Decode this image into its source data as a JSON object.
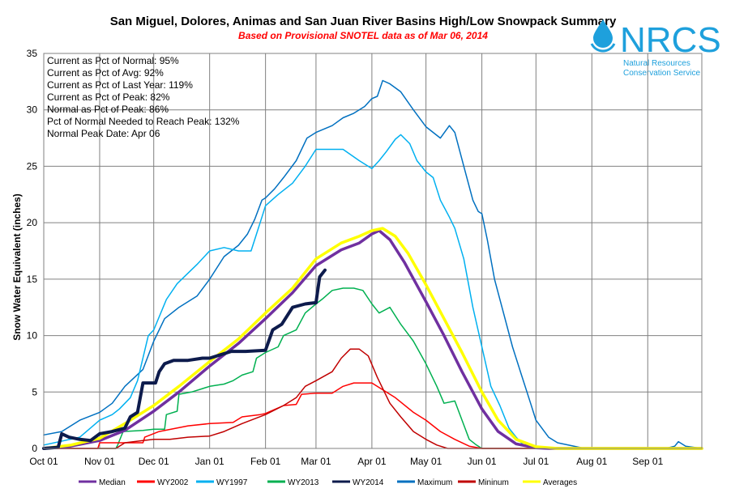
{
  "header": {
    "title": "San Miguel, Dolores, Animas and San Juan River Basins High/Low Snowpack Summary",
    "subtitle": "Based on Provisional SNOTEL data as of Mar 06, 2014"
  },
  "logo": {
    "name": "NRCS",
    "line1": "Natural Resources",
    "line2": "Conservation Service",
    "color": "#1ea0dc"
  },
  "stats": [
    "Current  as Pct of Normal: 95%",
    "Current  as Pct of Avg: 92%",
    "Current  as Pct of Last Year: 119%",
    "Current  as Pct of Peak: 82%",
    "Normal as Pct of Peak: 86%",
    "Pct of Normal Needed to Reach Peak: 132%",
    "Normal Peak Date: Apr 06"
  ],
  "chart_data": {
    "type": "line",
    "ylabel": "Snow Water Equivalent (inches)",
    "xlabel": "",
    "xlim": [
      0,
      365
    ],
    "ylim": [
      0,
      35
    ],
    "x_ticks": [
      {
        "label": "Oct 01",
        "day": 0
      },
      {
        "label": "Nov 01",
        "day": 31
      },
      {
        "label": "Dec 01",
        "day": 61
      },
      {
        "label": "Jan 01",
        "day": 92
      },
      {
        "label": "Feb 01",
        "day": 123
      },
      {
        "label": "Mar 01",
        "day": 151
      },
      {
        "label": "Apr 01",
        "day": 182
      },
      {
        "label": "May 01",
        "day": 212
      },
      {
        "label": "Jun 01",
        "day": 243
      },
      {
        "label": "Jul 01",
        "day": 273
      },
      {
        "label": "Aug 01",
        "day": 304
      },
      {
        "label": "Sep 01",
        "day": 335
      }
    ],
    "y_ticks": [
      0,
      5,
      10,
      15,
      20,
      25,
      30,
      35
    ],
    "grid": true,
    "legend_position": "bottom",
    "series": [
      {
        "name": "Median",
        "color": "#7030a0",
        "width": 3.5,
        "points": [
          [
            0,
            0
          ],
          [
            15,
            0.2
          ],
          [
            31,
            0.7
          ],
          [
            45,
            1.6
          ],
          [
            61,
            3.3
          ],
          [
            75,
            5.0
          ],
          [
            92,
            7.3
          ],
          [
            108,
            9.3
          ],
          [
            123,
            11.5
          ],
          [
            138,
            13.8
          ],
          [
            151,
            16.2
          ],
          [
            165,
            17.6
          ],
          [
            175,
            18.2
          ],
          [
            182,
            19.0
          ],
          [
            186,
            19.3
          ],
          [
            192,
            18.5
          ],
          [
            200,
            16.5
          ],
          [
            212,
            13.0
          ],
          [
            222,
            10.0
          ],
          [
            232,
            6.8
          ],
          [
            243,
            3.5
          ],
          [
            252,
            1.5
          ],
          [
            262,
            0.4
          ],
          [
            273,
            0.05
          ],
          [
            280,
            0
          ],
          [
            365,
            0
          ]
        ]
      },
      {
        "name": "WY2002",
        "color": "#ff0000",
        "width": 1.5,
        "points": [
          [
            0,
            0
          ],
          [
            30,
            0
          ],
          [
            31,
            0.5
          ],
          [
            55,
            0.5
          ],
          [
            56,
            1.0
          ],
          [
            64,
            1.5
          ],
          [
            80,
            2.0
          ],
          [
            92,
            2.2
          ],
          [
            105,
            2.3
          ],
          [
            110,
            2.8
          ],
          [
            120,
            3.0
          ],
          [
            123,
            3.1
          ],
          [
            133,
            3.8
          ],
          [
            140,
            3.9
          ],
          [
            143,
            4.8
          ],
          [
            151,
            4.9
          ],
          [
            160,
            4.9
          ],
          [
            166,
            5.5
          ],
          [
            172,
            5.8
          ],
          [
            182,
            5.8
          ],
          [
            187,
            5.3
          ],
          [
            195,
            4.5
          ],
          [
            205,
            3.2
          ],
          [
            212,
            2.5
          ],
          [
            220,
            1.5
          ],
          [
            228,
            0.8
          ],
          [
            236,
            0.2
          ],
          [
            243,
            0
          ],
          [
            365,
            0
          ]
        ]
      },
      {
        "name": "WY1997",
        "color": "#00b0f0",
        "width": 1.5,
        "points": [
          [
            0,
            0.3
          ],
          [
            20,
            1.0
          ],
          [
            31,
            2.5
          ],
          [
            38,
            3.0
          ],
          [
            42,
            3.5
          ],
          [
            48,
            4.5
          ],
          [
            52,
            6.0
          ],
          [
            58,
            10.0
          ],
          [
            61,
            10.5
          ],
          [
            68,
            13.2
          ],
          [
            74,
            14.6
          ],
          [
            85,
            16.3
          ],
          [
            92,
            17.5
          ],
          [
            100,
            17.8
          ],
          [
            108,
            17.5
          ],
          [
            115,
            17.5
          ],
          [
            118,
            19.0
          ],
          [
            121,
            20.5
          ],
          [
            123,
            21.5
          ],
          [
            130,
            22.5
          ],
          [
            138,
            23.5
          ],
          [
            145,
            25.0
          ],
          [
            151,
            26.5
          ],
          [
            160,
            26.5
          ],
          [
            166,
            26.5
          ],
          [
            175,
            25.5
          ],
          [
            182,
            24.8
          ],
          [
            186,
            25.5
          ],
          [
            190,
            26.3
          ],
          [
            195,
            27.4
          ],
          [
            198,
            27.8
          ],
          [
            203,
            27.0
          ],
          [
            207,
            25.5
          ],
          [
            212,
            24.5
          ],
          [
            216,
            24.0
          ],
          [
            220,
            22.0
          ],
          [
            225,
            20.5
          ],
          [
            228,
            19.5
          ],
          [
            233,
            16.8
          ],
          [
            238,
            12.5
          ],
          [
            243,
            9.0
          ],
          [
            248,
            5.5
          ],
          [
            253,
            3.8
          ],
          [
            258,
            1.8
          ],
          [
            262,
            1.0
          ],
          [
            266,
            0.3
          ],
          [
            273,
            0
          ],
          [
            365,
            0
          ]
        ]
      },
      {
        "name": "WY2013",
        "color": "#00b050",
        "width": 1.5,
        "points": [
          [
            0,
            0
          ],
          [
            40,
            0
          ],
          [
            41,
            0.3
          ],
          [
            44,
            1.5
          ],
          [
            55,
            1.6
          ],
          [
            61,
            1.7
          ],
          [
            67,
            1.7
          ],
          [
            68,
            3.0
          ],
          [
            74,
            3.3
          ],
          [
            75,
            4.8
          ],
          [
            82,
            5.0
          ],
          [
            88,
            5.3
          ],
          [
            92,
            5.5
          ],
          [
            100,
            5.7
          ],
          [
            105,
            6.0
          ],
          [
            110,
            6.5
          ],
          [
            116,
            6.8
          ],
          [
            118,
            8.0
          ],
          [
            123,
            8.5
          ],
          [
            130,
            9.0
          ],
          [
            133,
            10.0
          ],
          [
            140,
            10.5
          ],
          [
            145,
            12.0
          ],
          [
            151,
            12.8
          ],
          [
            155,
            13.3
          ],
          [
            160,
            14.0
          ],
          [
            166,
            14.2
          ],
          [
            172,
            14.2
          ],
          [
            177,
            14.0
          ],
          [
            182,
            12.8
          ],
          [
            186,
            12.0
          ],
          [
            192,
            12.5
          ],
          [
            198,
            11.0
          ],
          [
            205,
            9.5
          ],
          [
            212,
            7.5
          ],
          [
            218,
            5.5
          ],
          [
            222,
            4.0
          ],
          [
            228,
            4.2
          ],
          [
            232,
            2.5
          ],
          [
            236,
            0.8
          ],
          [
            240,
            0.3
          ],
          [
            243,
            0
          ],
          [
            365,
            0
          ]
        ]
      },
      {
        "name": "WY2014",
        "color": "#0d1b4c",
        "width": 4,
        "points": [
          [
            0,
            0
          ],
          [
            8,
            0.1
          ],
          [
            10,
            1.3
          ],
          [
            14,
            1.0
          ],
          [
            20,
            0.8
          ],
          [
            26,
            0.7
          ],
          [
            31,
            1.3
          ],
          [
            38,
            1.5
          ],
          [
            45,
            1.8
          ],
          [
            48,
            2.8
          ],
          [
            52,
            3.2
          ],
          [
            55,
            5.8
          ],
          [
            62,
            5.8
          ],
          [
            64,
            6.8
          ],
          [
            67,
            7.5
          ],
          [
            72,
            7.8
          ],
          [
            80,
            7.8
          ],
          [
            88,
            8.0
          ],
          [
            92,
            8.0
          ],
          [
            98,
            8.3
          ],
          [
            104,
            8.6
          ],
          [
            112,
            8.6
          ],
          [
            123,
            8.7
          ],
          [
            127,
            10.5
          ],
          [
            132,
            11.0
          ],
          [
            138,
            12.5
          ],
          [
            145,
            12.8
          ],
          [
            150,
            12.9
          ],
          [
            151,
            12.9
          ],
          [
            153,
            15.2
          ],
          [
            156,
            15.8
          ]
        ]
      },
      {
        "name": "Maximum",
        "color": "#0070c0",
        "width": 1.5,
        "points": [
          [
            0,
            1.2
          ],
          [
            10,
            1.5
          ],
          [
            20,
            2.5
          ],
          [
            31,
            3.2
          ],
          [
            38,
            4.0
          ],
          [
            45,
            5.5
          ],
          [
            55,
            7.0
          ],
          [
            61,
            9.5
          ],
          [
            67,
            11.5
          ],
          [
            75,
            12.5
          ],
          [
            85,
            13.5
          ],
          [
            92,
            15.0
          ],
          [
            100,
            17.0
          ],
          [
            108,
            18.0
          ],
          [
            113,
            19.0
          ],
          [
            117,
            20.3
          ],
          [
            121,
            22.0
          ],
          [
            123,
            22.2
          ],
          [
            128,
            23.0
          ],
          [
            133,
            24.0
          ],
          [
            140,
            25.5
          ],
          [
            146,
            27.5
          ],
          [
            151,
            28.0
          ],
          [
            160,
            28.6
          ],
          [
            166,
            29.3
          ],
          [
            172,
            29.7
          ],
          [
            178,
            30.3
          ],
          [
            182,
            31.0
          ],
          [
            185,
            31.2
          ],
          [
            188,
            32.6
          ],
          [
            192,
            32.3
          ],
          [
            198,
            31.6
          ],
          [
            205,
            30.0
          ],
          [
            212,
            28.5
          ],
          [
            220,
            27.5
          ],
          [
            225,
            28.6
          ],
          [
            228,
            28.0
          ],
          [
            233,
            25.0
          ],
          [
            238,
            22.0
          ],
          [
            241,
            21.0
          ],
          [
            243,
            20.8
          ],
          [
            246,
            18.5
          ],
          [
            250,
            15.0
          ],
          [
            255,
            12.0
          ],
          [
            260,
            9.0
          ],
          [
            265,
            6.5
          ],
          [
            270,
            4.0
          ],
          [
            273,
            2.5
          ],
          [
            280,
            1.0
          ],
          [
            285,
            0.5
          ],
          [
            300,
            0
          ],
          [
            345,
            0
          ],
          [
            350,
            0.2
          ],
          [
            352,
            0.6
          ],
          [
            356,
            0.2
          ],
          [
            365,
            0
          ]
        ]
      },
      {
        "name": "Mininum",
        "color": "#c00000",
        "width": 1.5,
        "points": [
          [
            0,
            0
          ],
          [
            40,
            0
          ],
          [
            45,
            0.5
          ],
          [
            55,
            0.7
          ],
          [
            61,
            0.8
          ],
          [
            70,
            0.8
          ],
          [
            80,
            1.0
          ],
          [
            92,
            1.1
          ],
          [
            100,
            1.5
          ],
          [
            110,
            2.2
          ],
          [
            123,
            3.0
          ],
          [
            133,
            3.8
          ],
          [
            140,
            4.5
          ],
          [
            145,
            5.5
          ],
          [
            151,
            6.0
          ],
          [
            160,
            6.8
          ],
          [
            165,
            8.0
          ],
          [
            170,
            8.8
          ],
          [
            175,
            8.8
          ],
          [
            180,
            8.2
          ],
          [
            185,
            6.3
          ],
          [
            192,
            4.0
          ],
          [
            198,
            2.8
          ],
          [
            205,
            1.5
          ],
          [
            212,
            0.8
          ],
          [
            218,
            0.3
          ],
          [
            224,
            0
          ],
          [
            365,
            0
          ]
        ]
      },
      {
        "name": "Averages",
        "color": "#ffff00",
        "width": 3.5,
        "points": [
          [
            0,
            0
          ],
          [
            15,
            0.3
          ],
          [
            31,
            0.9
          ],
          [
            45,
            2.2
          ],
          [
            61,
            3.8
          ],
          [
            75,
            5.5
          ],
          [
            92,
            7.7
          ],
          [
            108,
            9.7
          ],
          [
            123,
            12.0
          ],
          [
            138,
            14.2
          ],
          [
            151,
            16.8
          ],
          [
            165,
            18.2
          ],
          [
            175,
            18.8
          ],
          [
            182,
            19.3
          ],
          [
            188,
            19.5
          ],
          [
            195,
            18.8
          ],
          [
            202,
            17.3
          ],
          [
            212,
            14.5
          ],
          [
            222,
            11.5
          ],
          [
            232,
            8.5
          ],
          [
            243,
            5.0
          ],
          [
            252,
            2.5
          ],
          [
            262,
            0.8
          ],
          [
            273,
            0.15
          ],
          [
            285,
            0
          ],
          [
            365,
            0
          ]
        ]
      }
    ]
  }
}
